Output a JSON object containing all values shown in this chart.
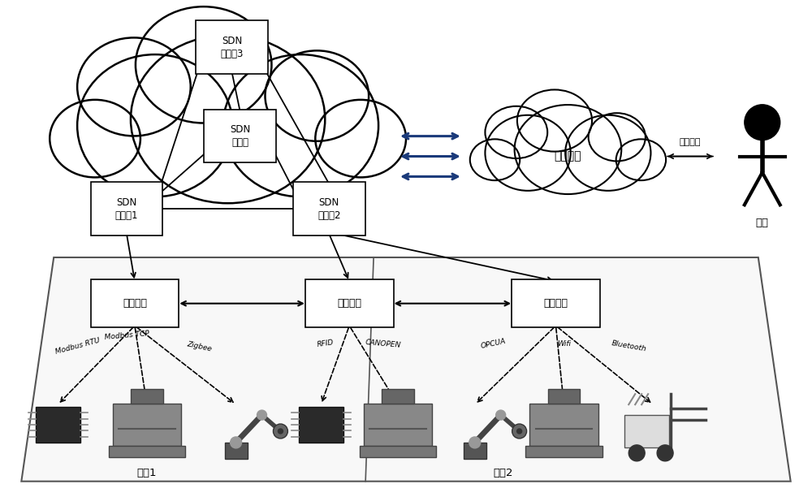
{
  "bg_color": "#ffffff",
  "box_color": "#ffffff",
  "box_edge_color": "#000000",
  "blue_arrow_color": "#1a3a7a",
  "sw3_label": "SDN\n交换机3",
  "ctrl_label": "SDN\n控制器",
  "sw1_label": "SDN\n交换机1",
  "sw2_label": "SDN\n交换机2",
  "cloud_server_label": "云服务器",
  "user_label": "用户",
  "access_label": "接入服务",
  "gw1_label": "智能网关",
  "gw2_label": "智能网关",
  "gw3_label": "智能网关",
  "workshop1_label": "车间1",
  "workshop2_label": "车间2",
  "proto1": [
    "Modbus RTU",
    "Modbus TCP",
    "Zigbee"
  ],
  "proto2": [
    "RFID",
    "CANOPEN"
  ],
  "proto3": [
    "OPCUA",
    "Wifi",
    "Bluetooth"
  ]
}
